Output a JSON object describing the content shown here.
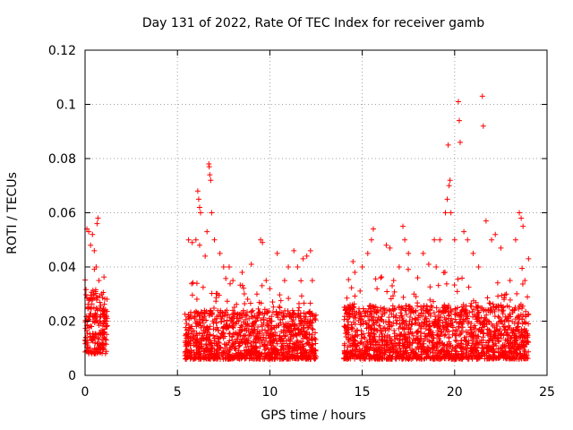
{
  "chart_data": {
    "type": "scatter",
    "title": "Day 131 of 2022, Rate Of TEC Index for receiver gamb",
    "xlabel": "GPS time / hours",
    "ylabel": "ROTI / TECUs",
    "xlim": [
      0,
      25
    ],
    "ylim": [
      0,
      0.12
    ],
    "xticks": [
      0,
      5,
      10,
      15,
      20,
      25
    ],
    "xtick_labels": [
      "0",
      "5",
      "10",
      "15",
      "20",
      "25"
    ],
    "yticks": [
      0,
      0.02,
      0.04,
      0.06,
      0.08,
      0.1,
      0.12
    ],
    "ytick_labels": [
      "0",
      "0.02",
      "0.04",
      "0.06",
      "0.08",
      "0.1",
      "0.12"
    ],
    "grid": true,
    "marker": "+",
    "color": "#ff0000",
    "series": [
      {
        "name": "ROTI",
        "points": [
          [
            0.05,
            0.014
          ],
          [
            0.1,
            0.054
          ],
          [
            0.15,
            0.012
          ],
          [
            0.2,
            0.053
          ],
          [
            0.25,
            0.022
          ],
          [
            0.3,
            0.048
          ],
          [
            0.35,
            0.018
          ],
          [
            0.4,
            0.052
          ],
          [
            0.45,
            0.03
          ],
          [
            0.5,
            0.046
          ],
          [
            0.55,
            0.012
          ],
          [
            0.6,
            0.04
          ],
          [
            0.65,
            0.056
          ],
          [
            0.7,
            0.058
          ],
          [
            0.75,
            0.035
          ],
          [
            0.8,
            0.02
          ],
          [
            0.85,
            0.015
          ],
          [
            0.9,
            0.03
          ],
          [
            0.95,
            0.024
          ],
          [
            1.0,
            0.01
          ],
          [
            1.05,
            0.016
          ],
          [
            1.1,
            0.02
          ],
          [
            5.6,
            0.05
          ],
          [
            5.8,
            0.049
          ],
          [
            6.0,
            0.05
          ],
          [
            6.2,
            0.048
          ],
          [
            6.1,
            0.068
          ],
          [
            6.15,
            0.065
          ],
          [
            6.2,
            0.062
          ],
          [
            6.25,
            0.06
          ],
          [
            6.5,
            0.044
          ],
          [
            6.6,
            0.053
          ],
          [
            6.7,
            0.078
          ],
          [
            6.72,
            0.077
          ],
          [
            6.75,
            0.074
          ],
          [
            6.8,
            0.072
          ],
          [
            6.85,
            0.06
          ],
          [
            7.0,
            0.05
          ],
          [
            7.3,
            0.045
          ],
          [
            7.5,
            0.04
          ],
          [
            7.8,
            0.04
          ],
          [
            8.0,
            0.035
          ],
          [
            8.5,
            0.038
          ],
          [
            9.0,
            0.041
          ],
          [
            9.3,
            0.03
          ],
          [
            9.5,
            0.05
          ],
          [
            9.6,
            0.049
          ],
          [
            9.8,
            0.035
          ],
          [
            10.0,
            0.032
          ],
          [
            10.4,
            0.045
          ],
          [
            10.8,
            0.035
          ],
          [
            11.0,
            0.04
          ],
          [
            11.3,
            0.046
          ],
          [
            11.5,
            0.04
          ],
          [
            11.8,
            0.043
          ],
          [
            12.0,
            0.044
          ],
          [
            12.2,
            0.046
          ],
          [
            12.3,
            0.035
          ],
          [
            14.1,
            0.025
          ],
          [
            14.5,
            0.042
          ],
          [
            14.6,
            0.038
          ],
          [
            15.0,
            0.04
          ],
          [
            15.3,
            0.045
          ],
          [
            15.5,
            0.05
          ],
          [
            15.6,
            0.054
          ],
          [
            15.8,
            0.032
          ],
          [
            16.0,
            0.036
          ],
          [
            16.3,
            0.048
          ],
          [
            16.5,
            0.047
          ],
          [
            16.7,
            0.035
          ],
          [
            17.0,
            0.04
          ],
          [
            17.2,
            0.055
          ],
          [
            17.3,
            0.05
          ],
          [
            17.5,
            0.045
          ],
          [
            17.8,
            0.03
          ],
          [
            18.0,
            0.036
          ],
          [
            18.3,
            0.045
          ],
          [
            18.6,
            0.041
          ],
          [
            18.9,
            0.05
          ],
          [
            19.0,
            0.04
          ],
          [
            19.2,
            0.05
          ],
          [
            19.5,
            0.06
          ],
          [
            19.6,
            0.065
          ],
          [
            19.65,
            0.085
          ],
          [
            19.7,
            0.07
          ],
          [
            19.75,
            0.072
          ],
          [
            19.8,
            0.06
          ],
          [
            20.0,
            0.05
          ],
          [
            20.2,
            0.101
          ],
          [
            20.25,
            0.094
          ],
          [
            20.3,
            0.086
          ],
          [
            20.5,
            0.053
          ],
          [
            20.7,
            0.05
          ],
          [
            21.0,
            0.045
          ],
          [
            21.3,
            0.04
          ],
          [
            21.5,
            0.103
          ],
          [
            21.55,
            0.092
          ],
          [
            21.7,
            0.057
          ],
          [
            22.0,
            0.05
          ],
          [
            22.2,
            0.052
          ],
          [
            22.5,
            0.047
          ],
          [
            22.8,
            0.03
          ],
          [
            23.0,
            0.035
          ],
          [
            23.3,
            0.05
          ],
          [
            23.5,
            0.06
          ],
          [
            23.6,
            0.058
          ],
          [
            23.7,
            0.055
          ],
          [
            23.8,
            0.035
          ],
          [
            24.0,
            0.043
          ]
        ]
      }
    ]
  }
}
